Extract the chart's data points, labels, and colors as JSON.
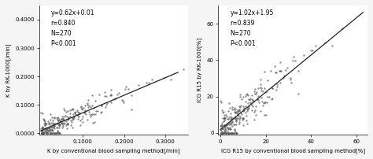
{
  "plot1": {
    "xlabel": "K by conventional blood sampling method[/min]",
    "ylabel": "K by RK-1000[/min]",
    "annotation": "y=0.62x+0.01\nr=0.840\nN=270\nP<0.001",
    "xlim": [
      -0.005,
      0.355
    ],
    "ylim": [
      -0.005,
      0.45
    ],
    "xticks": [
      0.1,
      0.2,
      0.3
    ],
    "yticks": [
      0.0,
      0.1,
      0.2,
      0.3,
      0.4
    ],
    "slope": 0.62,
    "intercept": 0.01,
    "x_line_start": 0.0,
    "x_line_end": 0.33,
    "seed": 7,
    "n_points": 270,
    "x_scale": 0.07,
    "noise_std": 0.022,
    "marker_color": "#555555",
    "marker_size": 3,
    "line_color": "#222222"
  },
  "plot2": {
    "xlabel": "ICG R15 by conventional blood sampling method[%]",
    "ylabel": "ICG R15 by RK-1000[%]",
    "annotation": "y=1.02x+1.95\nr=0.839\nN=270\nP<0.001",
    "xlim": [
      -1,
      65
    ],
    "ylim": [
      -1,
      70
    ],
    "xticks": [
      0,
      20,
      40,
      60
    ],
    "yticks": [
      0,
      20,
      40,
      60
    ],
    "slope": 1.02,
    "intercept": 1.95,
    "x_line_start": 0.0,
    "x_line_end": 63,
    "seed": 7,
    "n_points": 270,
    "x_scale": 11,
    "noise_std": 5.5,
    "marker_color": "#555555",
    "marker_size": 3,
    "line_color": "#222222"
  },
  "bg_color": "#ffffff",
  "fig_facecolor": "#f5f5f5",
  "fontsize_label": 5.0,
  "fontsize_annot": 5.5,
  "fontsize_tick": 5.0
}
